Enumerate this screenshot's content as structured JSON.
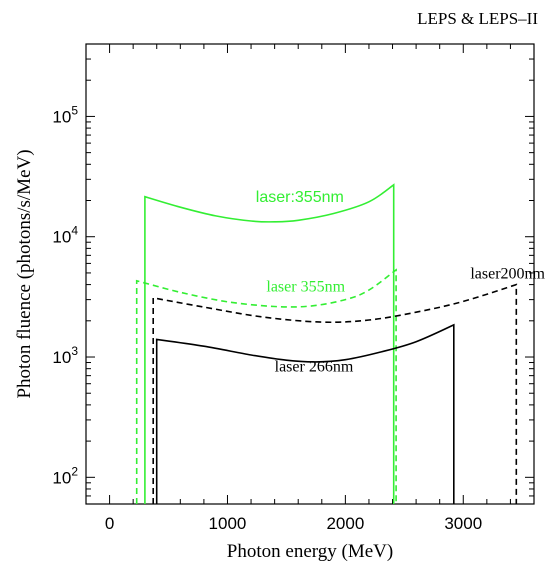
{
  "chart_data": {
    "type": "line",
    "title": "LEPS & LEPS–II",
    "xlabel": "Photon energy (MeV)",
    "ylabel": "Photon fluence (photons/s/MeV)",
    "xlim": [
      -200,
      3600
    ],
    "ylim": [
      60,
      400000
    ],
    "yscale": "log",
    "grid": false,
    "x_ticks": [
      {
        "value": 0,
        "label": "0"
      },
      {
        "value": 1000,
        "label": "1000"
      },
      {
        "value": 2000,
        "label": "2000"
      },
      {
        "value": 3000,
        "label": "3000"
      }
    ],
    "y_ticks": [
      {
        "value": 100,
        "base": "10",
        "exp": "2"
      },
      {
        "value": 1000,
        "base": "10",
        "exp": "3"
      },
      {
        "value": 10000,
        "base": "10",
        "exp": "4"
      },
      {
        "value": 100000,
        "base": "10",
        "exp": "5"
      }
    ],
    "series": [
      {
        "name": "laser:355nm",
        "color": "#33ee33",
        "dash": "solid",
        "label_style": "sans",
        "label_at": [
          1240,
          19500
        ],
        "x": [
          300,
          300,
          600,
          900,
          1200,
          1400,
          1600,
          1900,
          2200,
          2410,
          2410
        ],
        "y": [
          60,
          21500,
          17600,
          14900,
          13500,
          13300,
          13700,
          15600,
          19500,
          27000,
          60
        ]
      },
      {
        "name": "laser 355nm",
        "color": "#33ee33",
        "dash": "dashed",
        "label_style": "serif",
        "label_at": [
          1330,
          3500
        ],
        "x": [
          230,
          230,
          600,
          1000,
          1400,
          1700,
          2000,
          2200,
          2430,
          2430
        ],
        "y": [
          60,
          4300,
          3450,
          2880,
          2630,
          2650,
          3000,
          3600,
          5300,
          60
        ]
      },
      {
        "name": "laser200nm",
        "color": "#000000",
        "dash": "dashed",
        "label_style": "serif",
        "label_at": [
          3060,
          4500
        ],
        "x": [
          370,
          370,
          800,
          1300,
          1800,
          2200,
          2600,
          3000,
          3450,
          3450
        ],
        "y": [
          60,
          3100,
          2600,
          2150,
          1950,
          2030,
          2360,
          2900,
          4000,
          60
        ]
      },
      {
        "name": "laser 266nm",
        "color": "#000000",
        "dash": "solid",
        "label_style": "serif",
        "label_at": [
          1400,
          760
        ],
        "x": [
          400,
          400,
          800,
          1200,
          1500,
          1750,
          2000,
          2300,
          2600,
          2920,
          2920
        ],
        "y": [
          60,
          1400,
          1230,
          1040,
          940,
          910,
          950,
          1100,
          1340,
          1850,
          60
        ]
      }
    ]
  }
}
